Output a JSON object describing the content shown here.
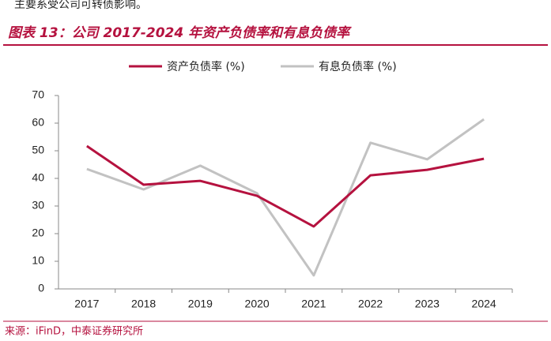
{
  "header": {
    "note": "主要系受公司可转债影响。"
  },
  "chart_data": {
    "type": "line",
    "title": "图表 13：公司 2017-2024 年资产负债率和有息负债率",
    "categories": [
      "2017",
      "2018",
      "2019",
      "2020",
      "2021",
      "2022",
      "2023",
      "2024"
    ],
    "series": [
      {
        "name": "资产负债率 (%)",
        "color": "#b5123f",
        "values": [
          51.7,
          37.7,
          39.1,
          33.7,
          22.6,
          41.1,
          43.1,
          47.1
        ]
      },
      {
        "name": "有息负债率 (%)",
        "color": "#c2c2c2",
        "values": [
          43.4,
          36.0,
          44.6,
          34.6,
          4.9,
          52.9,
          46.9,
          61.4
        ]
      }
    ],
    "ylim": [
      0,
      70
    ],
    "yticks": [
      0,
      10,
      20,
      30,
      40,
      50,
      60,
      70
    ],
    "legend": "top",
    "grid": false,
    "source": "来源：iFinD，中泰证券研究所"
  }
}
